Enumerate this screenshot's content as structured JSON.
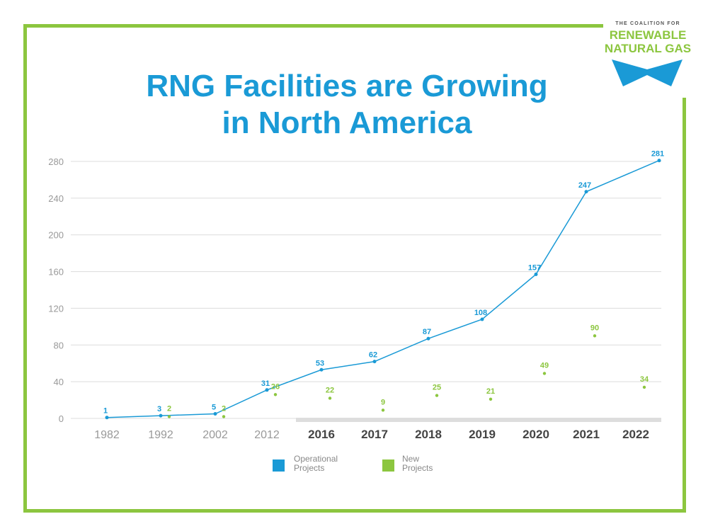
{
  "title": {
    "line1": "RNG Facilities are Growing",
    "line2": "in North America"
  },
  "logo": {
    "small": "THE COALITION FOR",
    "line1": "RENEWABLE",
    "line2": "NATURAL GAS"
  },
  "colors": {
    "operational": "#1a9ad6",
    "new": "#8cc63f",
    "frame": "#8cc63f",
    "title": "#1a9ad6"
  },
  "chart_data": {
    "type": "line",
    "title": "RNG Facilities are Growing in North America",
    "categories": [
      "1982",
      "1992",
      "2002",
      "2012",
      "2016",
      "2017",
      "2018",
      "2019",
      "2020",
      "2021",
      "2022"
    ],
    "bold_categories": [
      "2016",
      "2017",
      "2018",
      "2019",
      "2020",
      "2021",
      "2022"
    ],
    "ylim": [
      0,
      280
    ],
    "yticks": [
      0,
      40,
      80,
      120,
      160,
      200,
      240,
      280
    ],
    "grid": true,
    "legend_position": "bottom",
    "series": [
      {
        "name": "Operational Projects",
        "style": "line",
        "values": [
          1,
          3,
          5,
          31,
          53,
          62,
          87,
          108,
          157,
          247,
          281
        ]
      },
      {
        "name": "New Projects",
        "style": "points",
        "values": [
          null,
          2,
          2,
          26,
          22,
          9,
          25,
          21,
          49,
          90,
          34
        ]
      }
    ]
  }
}
